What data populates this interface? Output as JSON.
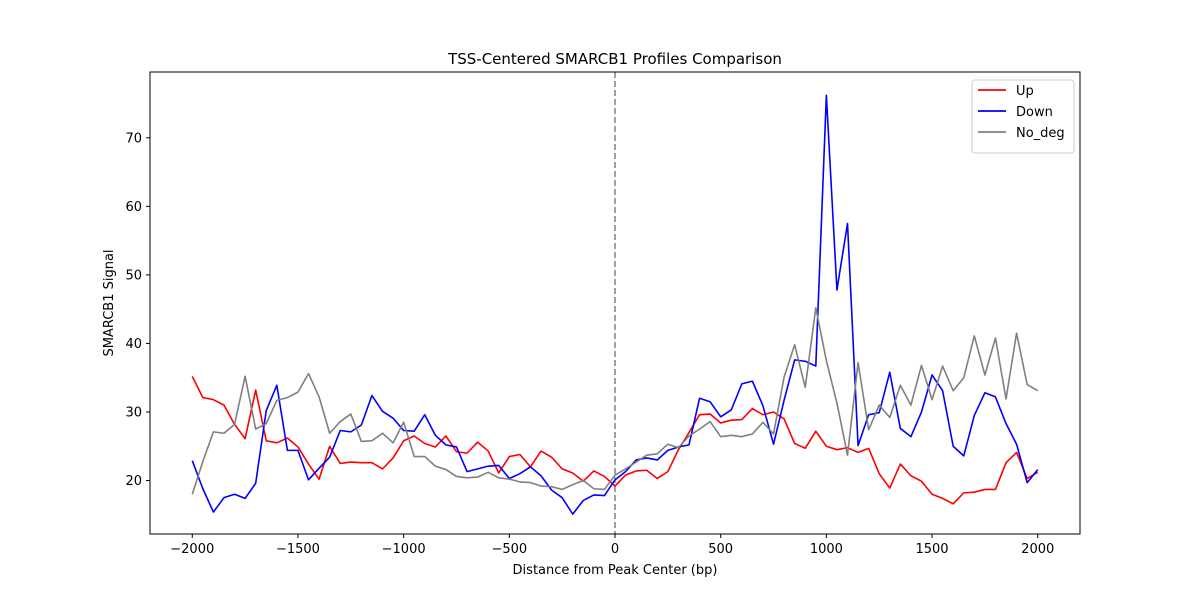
{
  "chart_data": {
    "type": "line",
    "title": "TSS-Centered SMARCB1 Profiles Comparison",
    "xlabel": "Distance from Peak Center (bp)",
    "ylabel": "SMARCB1 Signal",
    "xlim": [
      -2200,
      2200
    ],
    "ylim": [
      12.2,
      79.6
    ],
    "xticks": [
      -2000,
      -1500,
      -1000,
      -500,
      0,
      500,
      1000,
      1500,
      2000
    ],
    "xtick_labels": [
      "−2000",
      "−1500",
      "−1000",
      "−500",
      "0",
      "500",
      "1000",
      "1500",
      "2000"
    ],
    "yticks": [
      20,
      30,
      40,
      50,
      60,
      70
    ],
    "ytick_labels": [
      "20",
      "30",
      "40",
      "50",
      "60",
      "70"
    ],
    "grid": false,
    "legend_position": "top-right",
    "vline": {
      "x": 0,
      "style": "dashed",
      "color": "#808080"
    },
    "x": [
      -2000,
      -1950,
      -1900,
      -1850,
      -1800,
      -1750,
      -1700,
      -1650,
      -1600,
      -1550,
      -1500,
      -1450,
      -1400,
      -1350,
      -1300,
      -1250,
      -1200,
      -1150,
      -1100,
      -1050,
      -1000,
      -950,
      -900,
      -850,
      -800,
      -750,
      -700,
      -650,
      -600,
      -550,
      -500,
      -450,
      -400,
      -350,
      -300,
      -250,
      -200,
      -150,
      -100,
      -50,
      0,
      50,
      100,
      150,
      200,
      250,
      300,
      350,
      400,
      450,
      500,
      550,
      600,
      650,
      700,
      750,
      800,
      850,
      900,
      950,
      1000,
      1050,
      1100,
      1150,
      1200,
      1250,
      1300,
      1350,
      1400,
      1450,
      1500,
      1550,
      1600,
      1650,
      1700,
      1750,
      1800,
      1850,
      1900,
      1950,
      2000
    ],
    "series": [
      {
        "name": "Up",
        "color": "#ff0000",
        "values": [
          35.2,
          32.1,
          31.8,
          31.0,
          28.2,
          26.1,
          33.2,
          25.8,
          25.5,
          26.2,
          24.9,
          22.4,
          20.2,
          25.0,
          22.5,
          22.7,
          22.6,
          22.6,
          21.7,
          23.3,
          25.8,
          26.5,
          25.4,
          24.9,
          26.5,
          24.2,
          24.0,
          25.6,
          24.3,
          21.1,
          23.5,
          23.8,
          22.0,
          24.3,
          23.4,
          21.7,
          21.1,
          19.9,
          21.4,
          20.6,
          19.2,
          20.8,
          21.4,
          21.5,
          20.3,
          21.3,
          24.5,
          27.0,
          29.6,
          29.7,
          28.4,
          28.8,
          28.9,
          30.5,
          29.6,
          30.0,
          29.0,
          25.4,
          24.7,
          27.2,
          25.0,
          24.5,
          24.8,
          24.1,
          24.7,
          21.0,
          18.9,
          22.4,
          20.7,
          19.9,
          18.0,
          17.4,
          16.6,
          18.2,
          18.3,
          18.7,
          18.7,
          22.6,
          24.1,
          20.3,
          21.2
        ]
      },
      {
        "name": "Down",
        "color": "#0000ff",
        "values": [
          22.9,
          18.8,
          15.4,
          17.5,
          18.0,
          17.4,
          19.6,
          30.2,
          33.9,
          24.4,
          24.4,
          20.1,
          21.8,
          23.4,
          27.3,
          27.1,
          28.1,
          32.4,
          30.1,
          29.1,
          27.3,
          27.2,
          29.6,
          26.6,
          25.2,
          24.9,
          21.3,
          21.7,
          22.1,
          22.2,
          20.3,
          21.0,
          22.0,
          20.7,
          18.6,
          17.5,
          15.1,
          17.1,
          17.9,
          17.8,
          20.1,
          21.3,
          23.0,
          23.3,
          23.0,
          24.4,
          24.9,
          25.2,
          32.0,
          31.5,
          29.3,
          30.3,
          34.1,
          34.5,
          30.9,
          25.3,
          31.7,
          37.6,
          37.4,
          36.7,
          76.2,
          47.8,
          57.5,
          25.1,
          29.6,
          29.9,
          35.8,
          27.6,
          26.4,
          30.0,
          35.4,
          33.1,
          25.0,
          23.6,
          29.5,
          32.8,
          32.2,
          28.3,
          25.3,
          19.7,
          21.6
        ]
      },
      {
        "name": "No_deg",
        "color": "#808080",
        "values": [
          18.0,
          22.8,
          27.1,
          26.9,
          28.2,
          35.2,
          27.5,
          28.3,
          31.7,
          32.1,
          32.9,
          35.6,
          32.2,
          26.9,
          28.6,
          29.7,
          25.7,
          25.8,
          26.9,
          25.5,
          28.5,
          23.5,
          23.5,
          22.1,
          21.6,
          20.6,
          20.4,
          20.5,
          21.2,
          20.4,
          20.2,
          19.8,
          19.7,
          19.2,
          19.1,
          18.7,
          19.4,
          20.0,
          18.8,
          18.7,
          20.8,
          21.7,
          22.7,
          23.7,
          23.9,
          25.3,
          24.8,
          26.5,
          27.5,
          28.6,
          26.4,
          26.6,
          26.4,
          26.8,
          28.5,
          26.8,
          35.1,
          39.8,
          33.6,
          45.2,
          37.5,
          31.3,
          23.7,
          37.2,
          27.4,
          31.0,
          29.2,
          33.9,
          31.0,
          36.8,
          31.8,
          36.7,
          33.1,
          35.0,
          41.1,
          35.4,
          40.8,
          31.9,
          41.5,
          34.0,
          33.1
        ]
      }
    ]
  }
}
